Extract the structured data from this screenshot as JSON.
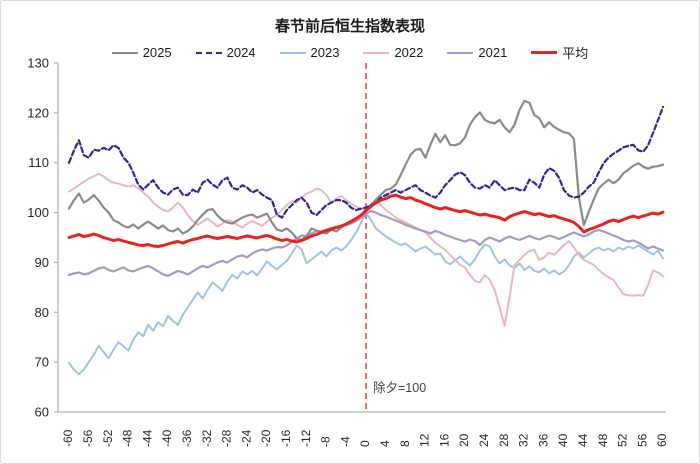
{
  "frame": {
    "bg": "#ffffff",
    "border_color": "#d9d9d9"
  },
  "chart_data": {
    "type": "line",
    "title": "春节前后恒生指数表现",
    "grid": false,
    "legend_position": "top",
    "x_axis": {
      "min": -60,
      "max": 60,
      "tick_step": 4,
      "label_rotation": -90,
      "tick_labels": [
        "-60",
        "-56",
        "-52",
        "-48",
        "-44",
        "-40",
        "-36",
        "-32",
        "-28",
        "-24",
        "-20",
        "-16",
        "-12",
        "-8",
        "-4",
        "0",
        "4",
        "8",
        "12",
        "16",
        "20",
        "24",
        "28",
        "32",
        "36",
        "40",
        "44",
        "48",
        "52",
        "56",
        "60"
      ]
    },
    "y_axis": {
      "min": 60,
      "max": 130,
      "tick_step": 10,
      "tick_labels": [
        "60",
        "70",
        "80",
        "90",
        "100",
        "110",
        "120",
        "130"
      ]
    },
    "reference_line": {
      "x": 0,
      "color": "#e8453c",
      "style": "dashed"
    },
    "annotation": {
      "text": "除夕=100",
      "x": 0,
      "y": 64
    },
    "axis_color": "#b3b3b3",
    "text_color": "#262626",
    "x_start": -60,
    "x_step": 1,
    "series": [
      {
        "name": "2025",
        "color": "#8a8a8a",
        "line_style": "solid",
        "width": 2.2,
        "values": [
          100.8,
          102.5,
          103.8,
          102.0,
          102.6,
          103.5,
          102.4,
          101.0,
          100.0,
          98.5,
          98.0,
          97.3,
          97.0,
          97.6,
          96.8,
          97.6,
          98.2,
          97.5,
          96.8,
          97.4,
          96.5,
          96.2,
          96.8,
          95.8,
          96.3,
          97.2,
          98.5,
          99.6,
          100.5,
          100.7,
          99.4,
          98.5,
          98.0,
          97.8,
          98.4,
          99.0,
          99.4,
          99.6,
          99.0,
          99.4,
          99.8,
          98.0,
          96.6,
          96.3,
          96.8,
          96.0,
          94.8,
          94.5,
          95.3,
          96.8,
          96.4,
          96.1,
          95.8,
          96.6,
          96.2,
          97.0,
          97.8,
          98.3,
          98.9,
          99.4,
          100.4,
          101.5,
          102.6,
          103.6,
          104.5,
          104.8,
          105.6,
          107.5,
          109.6,
          111.6,
          112.6,
          112.8,
          111.0,
          113.6,
          115.8,
          114.1,
          115.5,
          113.6,
          113.5,
          113.9,
          115.1,
          117.6,
          119.1,
          120.1,
          118.6,
          118.1,
          117.9,
          118.6,
          117.1,
          116.1,
          117.6,
          120.6,
          122.4,
          122.0,
          119.6,
          118.9,
          117.1,
          118.1,
          117.2,
          116.6,
          116.1,
          115.9,
          114.8,
          103.0,
          97.5,
          100.2,
          102.6,
          104.8,
          105.8,
          106.6,
          105.9,
          106.6,
          107.9,
          108.6,
          109.4,
          109.9,
          109.2,
          108.8,
          109.2,
          109.3,
          109.6
        ]
      },
      {
        "name": "2024",
        "color": "#28289b",
        "line_style": "dashed",
        "width": 2.2,
        "values": [
          110.0,
          112.5,
          114.5,
          111.5,
          111.0,
          112.6,
          112.4,
          113.0,
          112.5,
          113.5,
          113.0,
          111.0,
          110.0,
          108.0,
          105.6,
          104.6,
          105.6,
          106.5,
          105.0,
          104.0,
          103.6,
          104.6,
          105.0,
          103.6,
          103.5,
          104.6,
          104.0,
          106.0,
          106.6,
          105.6,
          105.0,
          106.5,
          107.0,
          105.0,
          104.6,
          105.5,
          105.0,
          104.0,
          104.5,
          103.6,
          103.0,
          102.5,
          99.6,
          99.0,
          100.5,
          101.5,
          102.5,
          103.0,
          102.0,
          100.0,
          99.5,
          100.5,
          101.5,
          102.0,
          102.5,
          102.5,
          102.0,
          101.0,
          100.5,
          100.8,
          101.0,
          101.5,
          102.0,
          103.0,
          103.5,
          104.0,
          104.5,
          104.0,
          104.5,
          105.0,
          105.5,
          104.5,
          104.0,
          103.4,
          103.0,
          104.0,
          105.5,
          106.5,
          107.6,
          108.1,
          107.5,
          106.0,
          105.0,
          104.8,
          105.5,
          105.0,
          106.5,
          105.5,
          104.5,
          104.8,
          105.0,
          104.5,
          104.5,
          106.6,
          106.0,
          105.0,
          107.6,
          108.9,
          108.4,
          107.0,
          104.5,
          103.4,
          103.0,
          103.2,
          104.0,
          105.2,
          106.0,
          108.0,
          109.9,
          111.0,
          111.8,
          112.4,
          113.1,
          113.4,
          113.6,
          112.5,
          112.2,
          113.5,
          116.0,
          118.5,
          121.2
        ]
      },
      {
        "name": "2023",
        "color": "#9dc3e6",
        "line_style": "solid",
        "width": 2,
        "values": [
          69.8,
          68.5,
          67.6,
          68.5,
          70.0,
          71.5,
          73.3,
          72.0,
          70.8,
          72.5,
          74.0,
          73.2,
          72.3,
          74.5,
          76.0,
          75.2,
          77.5,
          76.3,
          78.0,
          77.2,
          79.3,
          78.3,
          77.5,
          79.5,
          81.0,
          82.5,
          84.0,
          82.8,
          84.5,
          86.0,
          85.2,
          84.3,
          86.2,
          87.5,
          86.8,
          88.2,
          87.6,
          88.3,
          87.4,
          88.8,
          90.2,
          89.3,
          88.6,
          89.5,
          90.3,
          91.8,
          93.4,
          92.6,
          89.8,
          90.6,
          91.4,
          92.2,
          91.2,
          92.4,
          93.0,
          92.4,
          93.2,
          94.5,
          96.0,
          98.0,
          100.0,
          98.5,
          96.8,
          96.0,
          95.2,
          94.6,
          94.0,
          93.5,
          93.8,
          93.0,
          92.2,
          92.8,
          93.2,
          92.4,
          91.6,
          91.8,
          90.2,
          89.6,
          90.4,
          91.2,
          90.2,
          89.4,
          90.6,
          92.4,
          93.6,
          93.2,
          91.2,
          89.8,
          90.6,
          89.4,
          88.9,
          89.8,
          88.5,
          89.2,
          88.3,
          88.0,
          88.8,
          87.8,
          88.4,
          87.6,
          88.2,
          89.4,
          91.2,
          92.0,
          91.0,
          91.8,
          92.6,
          93.0,
          92.4,
          92.8,
          92.2,
          93.0,
          92.6,
          93.2,
          92.8,
          93.4,
          92.8,
          92.2,
          91.6,
          92.4,
          90.8
        ]
      },
      {
        "name": "2022",
        "color": "#eeb6ba",
        "line_style": "solid",
        "width": 2,
        "values": [
          104.2,
          104.8,
          105.5,
          106.2,
          106.8,
          107.3,
          107.8,
          107.2,
          106.5,
          106.0,
          105.8,
          105.5,
          105.2,
          105.5,
          104.8,
          104.0,
          103.2,
          102.0,
          101.2,
          100.5,
          100.2,
          101.0,
          102.0,
          101.0,
          99.5,
          98.3,
          97.5,
          98.2,
          98.8,
          98.0,
          97.2,
          97.8,
          98.5,
          98.2,
          97.5,
          97.0,
          97.8,
          98.3,
          97.8,
          97.3,
          98.2,
          99.0,
          99.5,
          100.5,
          101.5,
          102.3,
          102.0,
          103.0,
          103.8,
          104.2,
          104.8,
          104.5,
          103.5,
          102.0,
          102.8,
          103.3,
          102.5,
          101.8,
          101.2,
          100.8,
          100.5,
          101.5,
          102.5,
          101.5,
          100.5,
          99.8,
          99.0,
          98.5,
          98.0,
          97.5,
          97.0,
          96.5,
          96.0,
          95.0,
          94.0,
          93.2,
          92.5,
          91.5,
          90.5,
          89.5,
          89.0,
          87.5,
          86.3,
          86.0,
          87.5,
          86.5,
          84.5,
          81.0,
          77.3,
          83.0,
          89.5,
          90.5,
          91.5,
          92.3,
          92.5,
          90.5,
          91.0,
          92.0,
          91.5,
          92.5,
          93.5,
          94.3,
          93.0,
          91.5,
          90.5,
          90.0,
          89.5,
          88.5,
          87.7,
          87.0,
          86.5,
          85.0,
          83.6,
          83.4,
          83.3,
          83.4,
          83.3,
          85.5,
          88.4,
          88.0,
          87.2
        ]
      },
      {
        "name": "2021",
        "color": "#a29ac4",
        "line_style": "solid",
        "width": 2.2,
        "values": [
          87.5,
          87.8,
          88.0,
          87.6,
          87.8,
          88.3,
          88.8,
          89.0,
          88.5,
          88.2,
          88.6,
          89.0,
          88.4,
          88.2,
          88.6,
          89.0,
          89.3,
          88.8,
          88.2,
          87.6,
          87.3,
          87.8,
          88.3,
          88.0,
          87.6,
          88.2,
          88.8,
          89.3,
          89.0,
          89.5,
          90.0,
          90.3,
          90.0,
          90.6,
          91.2,
          91.4,
          91.0,
          91.8,
          92.3,
          92.6,
          92.4,
          92.8,
          93.1,
          93.0,
          93.4,
          94.2,
          94.8,
          95.4,
          95.2,
          95.8,
          96.3,
          96.2,
          96.6,
          96.9,
          97.2,
          97.1,
          97.5,
          97.8,
          98.3,
          99.0,
          99.8,
          100.3,
          100.0,
          99.5,
          99.2,
          98.8,
          98.4,
          98.0,
          97.5,
          97.2,
          96.8,
          96.5,
          96.2,
          95.8,
          96.3,
          96.0,
          95.5,
          95.2,
          94.8,
          94.5,
          94.2,
          94.6,
          94.3,
          93.5,
          94.5,
          95.0,
          94.6,
          94.2,
          94.8,
          95.2,
          94.8,
          94.5,
          94.9,
          95.3,
          94.9,
          94.6,
          95.0,
          95.4,
          95.1,
          94.7,
          95.1,
          95.6,
          96.0,
          95.6,
          95.2,
          95.6,
          96.2,
          96.5,
          96.2,
          95.8,
          95.4,
          95.0,
          94.5,
          94.2,
          94.4,
          94.0,
          93.4,
          92.8,
          93.2,
          92.8,
          92.4
        ]
      },
      {
        "name": "平均",
        "color": "#e8231d",
        "line_style": "solid",
        "width": 3,
        "values": [
          95.0,
          95.3,
          95.6,
          95.2,
          95.4,
          95.7,
          95.4,
          95.0,
          94.7,
          94.4,
          94.6,
          94.3,
          94.0,
          93.8,
          93.5,
          93.4,
          93.6,
          93.3,
          93.2,
          93.4,
          93.7,
          94.0,
          94.2,
          93.9,
          94.3,
          94.6,
          94.8,
          95.1,
          95.3,
          95.0,
          94.8,
          95.0,
          95.2,
          95.0,
          94.8,
          95.1,
          95.3,
          95.1,
          94.9,
          95.2,
          95.4,
          95.1,
          94.7,
          94.4,
          94.6,
          94.3,
          94.1,
          94.4,
          94.8,
          95.3,
          95.6,
          96.0,
          96.4,
          96.7,
          97.0,
          97.3,
          97.7,
          98.2,
          98.8,
          99.5,
          100.4,
          101.2,
          102.0,
          102.5,
          102.8,
          103.3,
          103.5,
          103.1,
          102.8,
          103.0,
          102.5,
          102.2,
          101.8,
          101.4,
          101.0,
          100.7,
          101.0,
          100.7,
          100.4,
          100.2,
          100.4,
          100.1,
          99.8,
          99.5,
          99.7,
          99.4,
          99.2,
          99.0,
          98.5,
          99.2,
          99.6,
          99.9,
          100.2,
          99.9,
          99.6,
          99.8,
          99.5,
          99.2,
          99.4,
          99.0,
          98.7,
          98.4,
          98.0,
          97.2,
          96.1,
          96.6,
          96.9,
          97.3,
          97.7,
          98.2,
          98.5,
          98.2,
          98.6,
          99.0,
          99.3,
          99.0,
          99.3,
          99.6,
          99.9,
          99.7,
          100.1
        ]
      }
    ]
  }
}
